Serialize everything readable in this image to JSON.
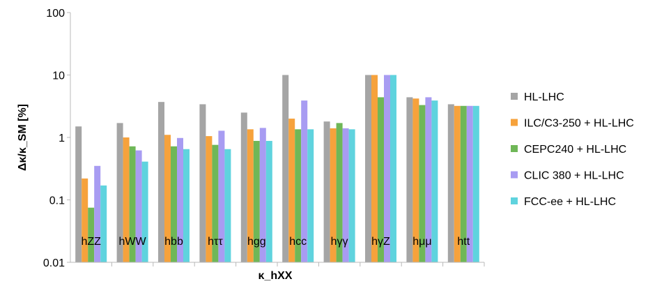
{
  "chart_data": {
    "type": "bar",
    "title": "",
    "xlabel": "κ_hXX",
    "ylabel": "Δκ/κ_SM [%]",
    "yscale": "log",
    "ylim": [
      0.01,
      100
    ],
    "yticks": [
      "0.01",
      "0.1",
      "1",
      "10",
      "100"
    ],
    "grid": false,
    "legend_position": "right",
    "categories": [
      "hZZ",
      "hWW",
      "hbb",
      "hττ",
      "hgg",
      "hcc",
      "hγγ",
      "hγZ",
      "hμμ",
      "htt"
    ],
    "series": [
      {
        "name": "HL-LHC",
        "color": "#a5a5a5",
        "values": [
          1.5,
          1.7,
          3.7,
          3.4,
          2.5,
          10,
          1.8,
          10,
          4.4,
          3.4
        ]
      },
      {
        "name": "ILC/C3-250 + HL-LHC",
        "color": "#f6a23c",
        "values": [
          0.22,
          1.0,
          1.1,
          1.05,
          1.35,
          2.0,
          1.4,
          10,
          4.2,
          3.2
        ]
      },
      {
        "name": "CEPC240 + HL-LHC",
        "color": "#6fb757",
        "values": [
          0.075,
          0.72,
          0.72,
          0.76,
          0.88,
          1.35,
          1.7,
          4.4,
          3.3,
          3.2
        ]
      },
      {
        "name": "CLIC 380 + HL-LHC",
        "color": "#a89cf2",
        "values": [
          0.35,
          0.62,
          0.98,
          1.28,
          1.42,
          3.9,
          1.4,
          10,
          4.4,
          3.2
        ]
      },
      {
        "name": "FCC-ee + HL-LHC",
        "color": "#5fd3de",
        "values": [
          0.17,
          0.41,
          0.65,
          0.65,
          0.88,
          1.35,
          1.35,
          10,
          3.9,
          3.2
        ]
      }
    ]
  }
}
